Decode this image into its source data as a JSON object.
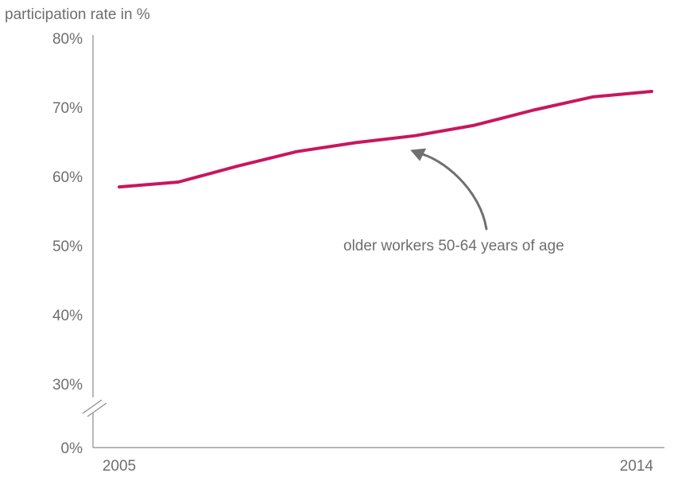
{
  "chart_data": {
    "type": "line",
    "title": "participation rate in %",
    "x": [
      2005,
      2006,
      2007,
      2008,
      2009,
      2010,
      2011,
      2012,
      2013,
      2014
    ],
    "series": [
      {
        "name": "older workers 50-64 years of age",
        "values": [
          58.5,
          59.2,
          61.5,
          63.6,
          64.9,
          65.9,
          67.4,
          69.6,
          71.5,
          72.3
        ]
      }
    ],
    "x_tick_labels": [
      "2005",
      "2014"
    ],
    "y_tick_values": [
      0,
      30,
      40,
      50,
      60,
      70,
      80
    ],
    "y_tick_labels": [
      "0%",
      "30%",
      "40%",
      "50%",
      "60%",
      "70%",
      "80%"
    ],
    "ylim": [
      0,
      80
    ],
    "axis_break": "between 0% and 30%",
    "grid": false,
    "annotation": {
      "text": "older workers 50-64 years of age",
      "points_to_x": 2010
    },
    "colors": {
      "line": "#c8175e",
      "axis": "#8a8a8a",
      "text": "#6e6e6e",
      "arrow": "#707070"
    }
  }
}
